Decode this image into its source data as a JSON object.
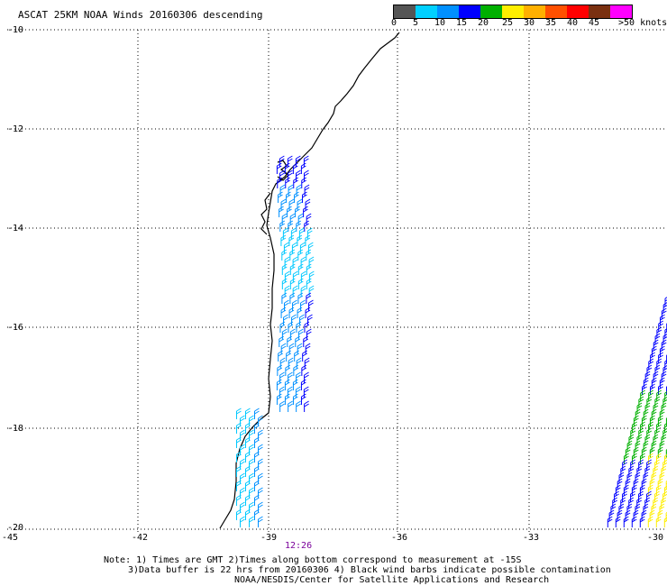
{
  "title": "ASCAT 25KM NOAA Winds 20160306 descending",
  "legend": {
    "labels": [
      "0",
      "5",
      "10",
      "15",
      "20",
      "25",
      "30",
      "35",
      "40",
      "45",
      ">50 knots"
    ],
    "colors": [
      "#555555",
      "#00d0ff",
      "#0090ff",
      "#0000ff",
      "#00b000",
      "#ffee00",
      "#ffb000",
      "#ff5000",
      "#ff0000",
      "#7a3010",
      "#ff00ff",
      "#8000ff"
    ]
  },
  "axes": {
    "lon_labels": [
      "-45",
      "-42",
      "-39",
      "-36",
      "-33",
      "-30"
    ],
    "lat_labels": [
      "-10",
      "-12",
      "-14",
      "-16",
      "-18",
      "-20"
    ]
  },
  "time_label": "12:26",
  "notes": [
    "Note: 1) Times are GMT 2)Times along bottom correspond to measurement at -15S",
    "3)Data buffer is 22 hrs from 20160306 4) Black wind barbs indicate possible contamination",
    "NOAA/NESDIS/Center for Satellite Applications and Research"
  ]
}
